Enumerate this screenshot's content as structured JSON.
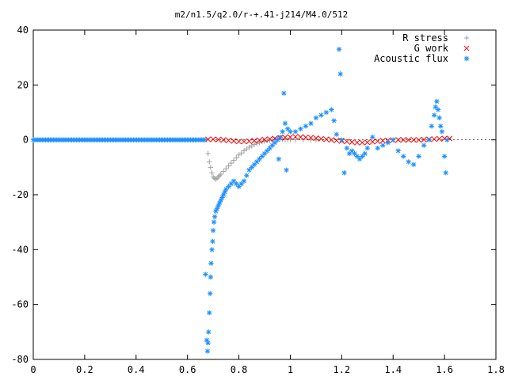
{
  "chart_data": {
    "type": "scatter",
    "title": "m2/n1.5/q2.0/r-+.41-j214/M4.0/512",
    "xlabel": "",
    "ylabel": "",
    "xlim": [
      0,
      1.8
    ],
    "ylim": [
      -80,
      40
    ],
    "x_ticks": [
      0,
      0.2,
      0.4,
      0.6,
      0.8,
      1.0,
      1.2,
      1.4,
      1.6,
      1.8
    ],
    "x_tick_labels": [
      "0",
      "0.2",
      "0.4",
      "0.6",
      "0.8",
      "1",
      "1.2",
      "1.4",
      "1.6",
      "1.8"
    ],
    "y_ticks": [
      -80,
      -60,
      -40,
      -20,
      0,
      20,
      40
    ],
    "y_tick_labels": [
      "-80",
      "-60",
      "-40",
      "-20",
      "0",
      "20",
      "40"
    ],
    "grid": false,
    "legend": "top-right",
    "series": [
      {
        "name": "R stress",
        "marker": "plus",
        "color": "#a0a0a0",
        "x": [
          0.674,
          0.68,
          0.685,
          0.69,
          0.695,
          0.7,
          0.705,
          0.71,
          0.715,
          0.72,
          0.725,
          0.73,
          0.74,
          0.75,
          0.76,
          0.77,
          0.78,
          0.79,
          0.8,
          0.81,
          0.82,
          0.83,
          0.84,
          0.85,
          0.86,
          0.87,
          0.88,
          0.89,
          0.9,
          0.91,
          0.92,
          0.93,
          0.94,
          0.95,
          0.96,
          0.97,
          0.98,
          0.99,
          1.0,
          1.02,
          1.05,
          1.08,
          1.1
        ],
        "y": [
          0,
          -5,
          -8,
          -10,
          -12,
          -13.5,
          -14,
          -14.3,
          -14,
          -13.5,
          -13,
          -12.5,
          -11.5,
          -10.5,
          -9.5,
          -8.5,
          -7.5,
          -6.5,
          -5.5,
          -4.8,
          -4,
          -3.3,
          -2.7,
          -2.2,
          -1.7,
          -1.3,
          -1,
          -0.7,
          -0.5,
          -0.3,
          -0.1,
          0,
          0.1,
          0.2,
          0.2,
          0.2,
          0.2,
          0.1,
          0.1,
          0.05,
          0,
          0,
          0
        ]
      },
      {
        "name": "G work",
        "marker": "cross",
        "color": "#ff0000",
        "x": [
          0.68,
          0.7,
          0.72,
          0.74,
          0.76,
          0.78,
          0.8,
          0.82,
          0.84,
          0.86,
          0.88,
          0.9,
          0.92,
          0.94,
          0.96,
          0.98,
          1.0,
          1.02,
          1.04,
          1.06,
          1.08,
          1.1,
          1.12,
          1.14,
          1.16,
          1.18,
          1.2,
          1.22,
          1.24,
          1.26,
          1.28,
          1.3,
          1.32,
          1.34,
          1.36,
          1.38,
          1.4,
          1.42,
          1.44,
          1.46,
          1.48,
          1.5,
          1.52,
          1.54,
          1.56,
          1.58,
          1.6,
          1.62
        ],
        "y": [
          0.2,
          0.2,
          0.1,
          0,
          -0.2,
          -0.4,
          -0.6,
          -0.6,
          -0.5,
          -0.3,
          -0.1,
          0.1,
          0.3,
          0.5,
          0.7,
          0.9,
          1.0,
          1.1,
          1.0,
          0.9,
          0.8,
          0.6,
          0.4,
          0.2,
          0,
          -0.2,
          -0.4,
          -0.6,
          -0.8,
          -1.0,
          -1.0,
          -0.9,
          -0.7,
          -0.5,
          -0.3,
          -0.2,
          -0.1,
          0,
          0,
          0,
          0,
          0,
          0.1,
          0.2,
          0.3,
          0.4,
          0.5,
          0.5
        ]
      },
      {
        "name": "Acoustic flux",
        "marker": "star",
        "color": "#1e90ff",
        "x": [
          0.67,
          0.675,
          0.678,
          0.68,
          0.682,
          0.685,
          0.688,
          0.69,
          0.692,
          0.695,
          0.698,
          0.7,
          0.703,
          0.706,
          0.71,
          0.715,
          0.72,
          0.725,
          0.73,
          0.735,
          0.74,
          0.745,
          0.75,
          0.76,
          0.77,
          0.78,
          0.79,
          0.8,
          0.81,
          0.82,
          0.83,
          0.84,
          0.85,
          0.86,
          0.87,
          0.88,
          0.89,
          0.9,
          0.91,
          0.92,
          0.93,
          0.94,
          0.95,
          0.955,
          0.96,
          0.97,
          0.975,
          0.98,
          0.985,
          0.99,
          1.0,
          1.02,
          1.04,
          1.06,
          1.08,
          1.1,
          1.12,
          1.14,
          1.16,
          1.17,
          1.18,
          1.19,
          1.195,
          1.2,
          1.21,
          1.22,
          1.23,
          1.24,
          1.25,
          1.26,
          1.27,
          1.28,
          1.29,
          1.3,
          1.32,
          1.34,
          1.36,
          1.38,
          1.4,
          1.42,
          1.44,
          1.46,
          1.48,
          1.5,
          1.52,
          1.54,
          1.55,
          1.56,
          1.565,
          1.57,
          1.575,
          1.58,
          1.585,
          1.59,
          1.6,
          1.605,
          1.61
        ],
        "y": [
          -49,
          -73,
          -77,
          -74,
          -70,
          -63,
          -56,
          -50,
          -45,
          -40,
          -37,
          -33,
          -30,
          -28,
          -26,
          -25,
          -24,
          -23,
          -22,
          -21,
          -20,
          -19,
          -18,
          -17,
          -16,
          -15,
          -16,
          -17,
          -16,
          -15,
          -13,
          -11,
          -10,
          -9,
          -8,
          -7,
          -6,
          -5,
          -4,
          -3,
          -2,
          -1,
          0,
          -7,
          1,
          3,
          17,
          6,
          -11,
          4,
          3,
          3,
          4,
          5,
          6,
          8,
          9,
          10,
          11,
          7,
          2,
          33,
          24,
          0,
          -12,
          -3,
          -5,
          -4,
          -5,
          -6,
          -7,
          -6,
          -5,
          -3,
          1,
          -3,
          -2,
          -1,
          0,
          -4,
          -6,
          -8,
          -9,
          -6,
          -2,
          0,
          5,
          9,
          12,
          14,
          11,
          8,
          5,
          3,
          -6,
          -12,
          0
        ]
      }
    ]
  }
}
